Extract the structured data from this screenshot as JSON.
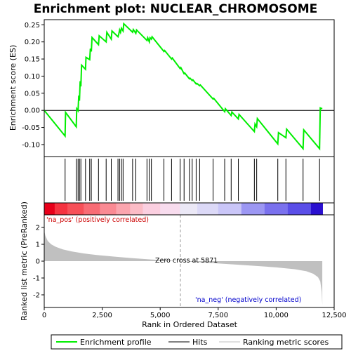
{
  "chart_data": {
    "type": "line",
    "title": "Enrichment plot: NUCLEAR_CHROMOSOME",
    "es_panel": {
      "ylabel": "Enrichment score (ES)",
      "ylim": [
        -0.135,
        0.265
      ],
      "yticks": [
        -0.1,
        -0.05,
        0.0,
        0.05,
        0.1,
        0.15,
        0.2,
        0.25
      ],
      "ytick_labels": [
        "-0.10",
        "-0.05",
        "0.00",
        "0.05",
        "0.10",
        "0.15",
        "0.20",
        "0.25"
      ],
      "series": [
        {
          "name": "Enrichment profile",
          "color": "#00ee00",
          "x": [
            0,
            900,
            920,
            1380,
            1400,
            1460,
            1490,
            1520,
            1550,
            1580,
            1610,
            1780,
            1800,
            1960,
            1990,
            2030,
            2060,
            2340,
            2370,
            2670,
            2700,
            2890,
            2920,
            3180,
            3210,
            3250,
            3290,
            3330,
            3400,
            3430,
            3810,
            3840,
            3950,
            3980,
            4430,
            4460,
            4530,
            4560,
            4620,
            4650,
            5160,
            5190,
            5490,
            5520,
            5860,
            5890,
            6030,
            6060,
            6260,
            6290,
            6380,
            6410,
            6550,
            6580,
            6700,
            6730,
            7280,
            7310,
            7780,
            7810,
            8060,
            8090,
            8370,
            8400,
            9060,
            9090,
            9160,
            9190,
            10070,
            10100,
            10420,
            10450,
            11160,
            11190,
            11870,
            11900,
            11990
          ],
          "y": [
            0.0,
            -0.075,
            -0.006,
            -0.048,
            0.005,
            -0.001,
            0.043,
            0.028,
            0.085,
            0.07,
            0.132,
            0.12,
            0.155,
            0.148,
            0.18,
            0.172,
            0.213,
            0.192,
            0.218,
            0.2,
            0.228,
            0.208,
            0.232,
            0.215,
            0.222,
            0.235,
            0.228,
            0.24,
            0.232,
            0.253,
            0.228,
            0.236,
            0.225,
            0.235,
            0.204,
            0.212,
            0.2,
            0.212,
            0.208,
            0.215,
            0.172,
            0.175,
            0.15,
            0.153,
            0.122,
            0.125,
            0.107,
            0.109,
            0.092,
            0.094,
            0.087,
            0.089,
            0.077,
            0.079,
            0.072,
            0.074,
            0.033,
            0.035,
            -0.004,
            0.005,
            -0.015,
            -0.005,
            -0.025,
            -0.012,
            -0.062,
            -0.04,
            -0.048,
            -0.024,
            -0.098,
            -0.065,
            -0.08,
            -0.055,
            -0.112,
            -0.057,
            -0.112,
            0.007,
            0.005
          ]
        }
      ]
    },
    "hits": [
      900,
      1380,
      1460,
      1520,
      1580,
      1780,
      1960,
      2030,
      2340,
      2670,
      2890,
      3180,
      3250,
      3330,
      3400,
      3810,
      3950,
      4430,
      4530,
      4620,
      5160,
      5490,
      5860,
      6030,
      6260,
      6380,
      6550,
      6700,
      7280,
      7780,
      8060,
      8370,
      9060,
      9160,
      10070,
      10420,
      11160,
      11870
    ],
    "rank_panel": {
      "ylabel": "Ranked list metric (PreRanked)",
      "ylim": [
        -2.75,
        2.75
      ],
      "yticks": [
        -2,
        -1,
        0,
        1,
        2
      ],
      "ytick_labels": [
        "-2",
        "-1",
        "0",
        "1",
        "2"
      ],
      "series": [
        {
          "name": "Ranking metric scores",
          "color": "#c0c0c0",
          "x": [
            0,
            50,
            150,
            300,
            500,
            800,
            1200,
            1700,
            2300,
            3000,
            3800,
            4600,
            5300,
            5871,
            6500,
            7300,
            8200,
            9100,
            10000,
            10800,
            11300,
            11600,
            11800,
            11900,
            11960,
            11990
          ],
          "y": [
            1.8,
            1.5,
            1.2,
            1.0,
            0.85,
            0.7,
            0.57,
            0.46,
            0.36,
            0.27,
            0.18,
            0.1,
            0.04,
            0.0,
            -0.05,
            -0.12,
            -0.2,
            -0.28,
            -0.37,
            -0.48,
            -0.6,
            -0.75,
            -0.95,
            -1.2,
            -1.8,
            -2.6
          ]
        }
      ],
      "zero_cross_label": "Zero cross at 5871",
      "zero_cross": 5871,
      "pos_label": "'na_pos' (positively correlated)",
      "neg_label": "'na_neg' (negatively correlated)"
    },
    "xlabel": "Rank in Ordered Dataset",
    "xlim": [
      0,
      12500
    ],
    "xticks": [
      0,
      2500,
      5000,
      7500,
      10000,
      12500
    ],
    "xtick_labels": [
      "0",
      "2,500",
      "5,000",
      "7,500",
      "10,000",
      "12,500"
    ],
    "heatmap_segments": [
      {
        "x0": 0,
        "x1": 450,
        "color": "#e8001a"
      },
      {
        "x0": 450,
        "x1": 1000,
        "color": "#f53340"
      },
      {
        "x0": 1000,
        "x1": 1700,
        "color": "#f75058"
      },
      {
        "x0": 1700,
        "x1": 2400,
        "color": "#f86c75"
      },
      {
        "x0": 2400,
        "x1": 3100,
        "color": "#fa8a93"
      },
      {
        "x0": 3100,
        "x1": 3700,
        "color": "#fba5ae"
      },
      {
        "x0": 3700,
        "x1": 4250,
        "color": "#fcbcc6"
      },
      {
        "x0": 4250,
        "x1": 5000,
        "color": "#fbcfe0"
      },
      {
        "x0": 5000,
        "x1": 5850,
        "color": "#f8dcee"
      },
      {
        "x0": 5850,
        "x1": 6600,
        "color": "#ebe8f6"
      },
      {
        "x0": 6600,
        "x1": 7500,
        "color": "#dcd9f7"
      },
      {
        "x0": 7500,
        "x1": 8500,
        "color": "#cac6f8"
      },
      {
        "x0": 8500,
        "x1": 9500,
        "color": "#9c97f3"
      },
      {
        "x0": 9500,
        "x1": 10500,
        "color": "#7a71ee"
      },
      {
        "x0": 10500,
        "x1": 11500,
        "color": "#5a4ee8"
      },
      {
        "x0": 11500,
        "x1": 12000,
        "color": "#2a10d0"
      }
    ],
    "legend": {
      "placement": "bottom",
      "items": [
        {
          "label": "Enrichment profile",
          "color": "#00ee00"
        },
        {
          "label": "Hits",
          "color": "#000000"
        },
        {
          "label": "Ranking metric scores",
          "color": "#c0c0c0"
        }
      ]
    }
  }
}
